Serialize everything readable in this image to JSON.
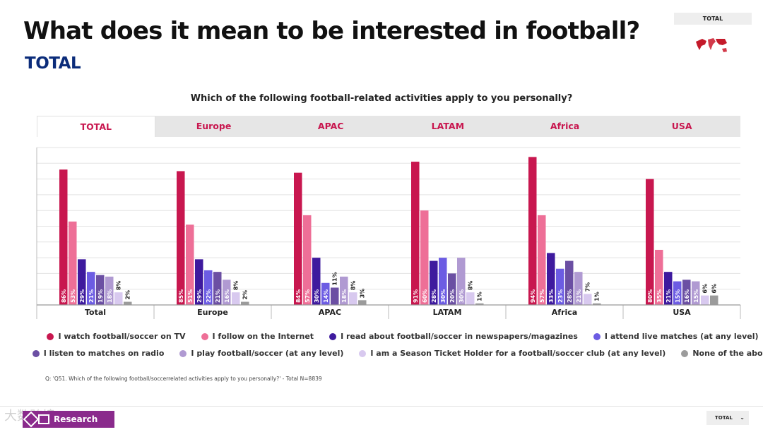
{
  "header": {
    "title": "What does it mean to be interested in football?",
    "subtitle": "TOTAL",
    "corner_tag": "TOTAL",
    "map_icon": "world-map-icon"
  },
  "question": "Which of the following football-related activities apply to you personally?",
  "tabs": [
    {
      "label": "TOTAL",
      "active": true
    },
    {
      "label": "Europe",
      "active": false
    },
    {
      "label": "APAC",
      "active": false
    },
    {
      "label": "LATAM",
      "active": false
    },
    {
      "label": "Africa",
      "active": false
    },
    {
      "label": "USA",
      "active": false
    }
  ],
  "chart_data": {
    "type": "bar",
    "title": "Which of the following football-related activities apply to you personally?",
    "xlabel": "",
    "ylabel": "",
    "ylim": [
      0,
      100
    ],
    "grid": true,
    "categories": [
      "Total",
      "Europe",
      "APAC",
      "LATAM",
      "Africa",
      "USA"
    ],
    "series": [
      {
        "name": "I watch football/soccer on TV",
        "color": "#c8174f",
        "values": [
          86,
          85,
          84,
          91,
          94,
          80
        ]
      },
      {
        "name": "I follow on the Internet",
        "color": "#ee6f97",
        "values": [
          53,
          51,
          57,
          60,
          57,
          35
        ]
      },
      {
        "name": "I read about football/soccer in newspapers/magazines",
        "color": "#3e1a9e",
        "values": [
          29,
          29,
          30,
          28,
          33,
          21
        ]
      },
      {
        "name": "I attend live matches (at any level)",
        "color": "#6c5ce3",
        "values": [
          21,
          22,
          14,
          30,
          23,
          15
        ]
      },
      {
        "name": "I listen to matches on radio",
        "color": "#6b4fa3",
        "values": [
          19,
          21,
          11,
          20,
          28,
          16
        ]
      },
      {
        "name": "I play football/soccer (at any level)",
        "color": "#b09ad2",
        "values": [
          18,
          16,
          18,
          30,
          21,
          15
        ]
      },
      {
        "name": "I am a Season Ticket Holder for a football/soccer club (at any level)",
        "color": "#d8c9ef",
        "values": [
          8,
          8,
          8,
          8,
          7,
          6
        ]
      },
      {
        "name": "None of the above",
        "color": "#9b9b9b",
        "values": [
          2,
          2,
          3,
          1,
          1,
          6
        ]
      }
    ],
    "labels": [
      [
        "86%",
        "53%",
        "29%",
        "21%",
        "19%",
        "18%",
        "8%",
        "2%"
      ],
      [
        "85%",
        "51%",
        "29%",
        "22%",
        "21%",
        "16%",
        "8%",
        "2%"
      ],
      [
        "84%",
        "57%",
        "30%",
        "14%",
        "11%",
        "18%",
        "8%",
        "3%"
      ],
      [
        "91%",
        "60%",
        "28%",
        "30%",
        "20%",
        "30%",
        "8%",
        "1%"
      ],
      [
        "94%",
        "57%",
        "33%",
        "23%",
        "28%",
        "21%",
        "7%",
        "1%"
      ],
      [
        "80%",
        "35%",
        "21%",
        "15%",
        "16%",
        "15%",
        "6%",
        "6%"
      ]
    ],
    "legend": "bottom"
  },
  "footnote": "Q: 'Q51. Which of the following football/soccerrelated activities apply to you personally?' - Total N=8839",
  "footer": {
    "logo_text": "Research",
    "watermark": "大数跨境",
    "dropdown_value": "TOTAL"
  }
}
